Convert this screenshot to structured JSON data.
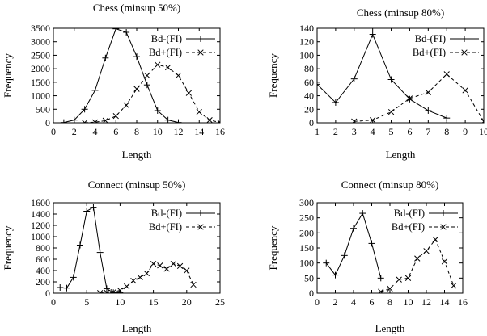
{
  "chart_data": [
    {
      "type": "line",
      "title": "Chess (minsup 50%)",
      "xlabel": "Length",
      "ylabel": "Frequency",
      "xlim": [
        0,
        16
      ],
      "ylim": [
        0,
        3500
      ],
      "xticks": [
        0,
        2,
        4,
        6,
        8,
        10,
        12,
        14,
        16
      ],
      "yticks": [
        0,
        500,
        1000,
        1500,
        2000,
        2500,
        3000,
        3500
      ],
      "legend_position": "top-right",
      "series": [
        {
          "name": "Bd-(FI)",
          "marker": "plus",
          "x": [
            1,
            2,
            3,
            4,
            5,
            6,
            7,
            8,
            9,
            10,
            11,
            12
          ],
          "y": [
            10,
            100,
            500,
            1200,
            2400,
            3480,
            3350,
            2450,
            1400,
            450,
            100,
            10
          ]
        },
        {
          "name": "Bd+(FI)",
          "marker": "cross",
          "x": [
            3,
            4,
            5,
            6,
            7,
            8,
            9,
            10,
            11,
            12,
            13,
            14,
            15,
            16
          ],
          "y": [
            5,
            20,
            80,
            250,
            650,
            1250,
            1750,
            2150,
            2050,
            1750,
            1100,
            400,
            100,
            10
          ]
        }
      ]
    },
    {
      "type": "line",
      "title": "Chess (minsup 80%)",
      "xlabel": "Length",
      "ylabel": "Frequency",
      "xlim": [
        1,
        10
      ],
      "ylim": [
        0,
        140
      ],
      "xticks": [
        1,
        2,
        3,
        4,
        5,
        6,
        7,
        8,
        9,
        10
      ],
      "yticks": [
        0,
        20,
        40,
        60,
        80,
        100,
        120,
        140
      ],
      "legend_position": "top-right",
      "series": [
        {
          "name": "Bd-(FI)",
          "marker": "plus",
          "x": [
            1,
            2,
            3,
            4,
            5,
            6,
            7,
            8
          ],
          "y": [
            57,
            30,
            65,
            131,
            64,
            35,
            18,
            7
          ]
        },
        {
          "name": "Bd+(FI)",
          "marker": "cross",
          "x": [
            3,
            4,
            5,
            6,
            7,
            8,
            9,
            10
          ],
          "y": [
            2,
            4,
            16,
            36,
            45,
            72,
            48,
            2
          ]
        }
      ]
    },
    {
      "type": "line",
      "title": "Connect (minsup 50%)",
      "xlabel": "Length",
      "ylabel": "Frequency",
      "xlim": [
        0,
        25
      ],
      "ylim": [
        0,
        1600
      ],
      "xticks": [
        0,
        5,
        10,
        15,
        20,
        25
      ],
      "yticks": [
        0,
        200,
        400,
        600,
        800,
        1000,
        1200,
        1400,
        1600
      ],
      "legend_position": "top-right",
      "series": [
        {
          "name": "Bd-(FI)",
          "marker": "plus",
          "x": [
            1,
            2,
            3,
            4,
            5,
            6,
            7,
            8,
            9,
            10
          ],
          "y": [
            100,
            90,
            280,
            850,
            1450,
            1520,
            720,
            80,
            10,
            5
          ]
        },
        {
          "name": "Bd+(FI)",
          "marker": "cross",
          "x": [
            7,
            8,
            9,
            10,
            11,
            12,
            13,
            14,
            15,
            16,
            17,
            18,
            19,
            20,
            21
          ],
          "y": [
            5,
            10,
            20,
            50,
            120,
            220,
            280,
            350,
            520,
            490,
            430,
            520,
            480,
            400,
            150
          ]
        }
      ]
    },
    {
      "type": "line",
      "title": "Connect (minsup 80%)",
      "xlabel": "Length",
      "ylabel": "Frequency",
      "xlim": [
        0,
        16
      ],
      "ylim": [
        0,
        300
      ],
      "xticks": [
        0,
        2,
        4,
        6,
        8,
        10,
        12,
        14,
        16
      ],
      "yticks": [
        0,
        50,
        100,
        150,
        200,
        250,
        300
      ],
      "legend_position": "top-right",
      "series": [
        {
          "name": "Bd-(FI)",
          "marker": "plus",
          "x": [
            1,
            2,
            3,
            4,
            5,
            6,
            7
          ],
          "y": [
            100,
            60,
            125,
            215,
            265,
            165,
            50
          ]
        },
        {
          "name": "Bd+(FI)",
          "marker": "cross",
          "x": [
            7,
            8,
            9,
            10,
            11,
            12,
            13,
            14,
            15
          ],
          "y": [
            5,
            15,
            45,
            50,
            115,
            140,
            178,
            105,
            25
          ]
        }
      ]
    }
  ]
}
